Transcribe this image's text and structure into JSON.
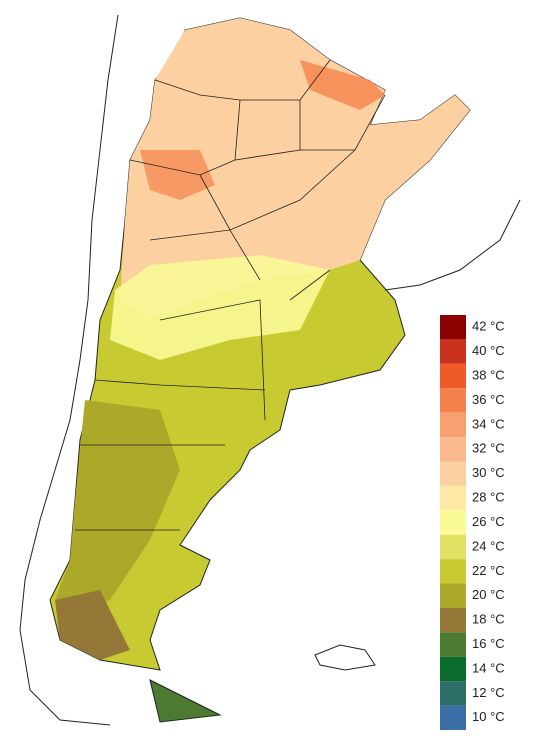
{
  "legend": {
    "items": [
      {
        "label": "42 °C",
        "color": "#8b0000"
      },
      {
        "label": "40 °C",
        "color": "#c8321e"
      },
      {
        "label": "38 °C",
        "color": "#f05a28"
      },
      {
        "label": "36 °C",
        "color": "#f5824c"
      },
      {
        "label": "34 °C",
        "color": "#f8a070"
      },
      {
        "label": "32 °C",
        "color": "#fab98c"
      },
      {
        "label": "30 °C",
        "color": "#fcd0a0"
      },
      {
        "label": "28 °C",
        "color": "#fde9a4"
      },
      {
        "label": "26 °C",
        "color": "#fafa96"
      },
      {
        "label": "24 °C",
        "color": "#e0e264"
      },
      {
        "label": "22 °C",
        "color": "#c8ca32"
      },
      {
        "label": "20 °C",
        "color": "#aca82a"
      },
      {
        "label": "18 °C",
        "color": "#957838"
      },
      {
        "label": "16 °C",
        "color": "#4b7a30"
      },
      {
        "label": "14 °C",
        "color": "#0a6b2e"
      },
      {
        "label": "12 °C",
        "color": "#2e6e68"
      },
      {
        "label": "10 °C",
        "color": "#3a6ea5"
      }
    ]
  }
}
